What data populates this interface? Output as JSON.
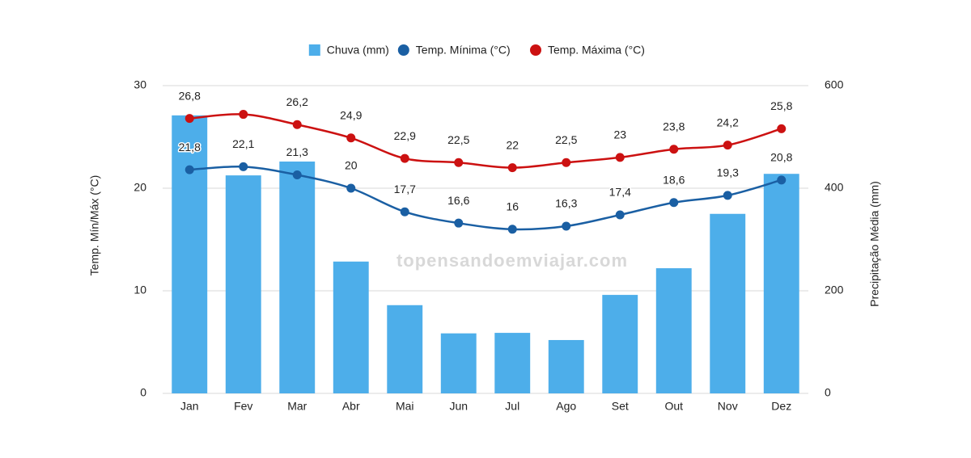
{
  "chart_data": {
    "type": "combo",
    "categories": [
      "Jan",
      "Fev",
      "Mar",
      "Abr",
      "Mai",
      "Jun",
      "Jul",
      "Ago",
      "Set",
      "Out",
      "Nov",
      "Dez"
    ],
    "series": [
      {
        "name": "Chuva (mm)",
        "type": "bar",
        "axis": "y2",
        "color": "#4daeea",
        "values": [
          542,
          425,
          452,
          257,
          172,
          117,
          118,
          104,
          192,
          244,
          350,
          428
        ]
      },
      {
        "name": "Temp. Mínima (°C)",
        "type": "line",
        "color": "#1a5fa3",
        "values": [
          21.8,
          22.1,
          21.3,
          20,
          17.7,
          16.6,
          16,
          16.3,
          17.4,
          18.6,
          19.3,
          20.8
        ],
        "value_labels": [
          "21,8",
          "22,1",
          "21,3",
          "20",
          "17,7",
          "16,6",
          "16",
          "16,3",
          "17,4",
          "18,6",
          "19,3",
          "20,8"
        ]
      },
      {
        "name": "Temp. Máxima (°C)",
        "type": "line",
        "color": "#cc1111",
        "values": [
          26.8,
          27.2,
          26.2,
          24.9,
          22.9,
          22.5,
          22,
          22.5,
          23,
          23.8,
          24.2,
          25.8
        ],
        "value_labels": [
          "26,8",
          null,
          "26,2",
          "24,9",
          "22,9",
          "22,5",
          "22",
          "22,5",
          "23",
          "23,8",
          "24,2",
          "25,8"
        ]
      }
    ],
    "ylabel": "Temp. Mín/Máx (°C)",
    "y2label": "Precipitação Média (mm)",
    "ylim": [
      0,
      30
    ],
    "yticks": [
      0,
      10,
      20,
      30
    ],
    "y2lim": [
      0,
      600
    ],
    "y2ticks": [
      0,
      200,
      400,
      600
    ],
    "grid": true,
    "watermark": "topensandoemviajar.com"
  }
}
